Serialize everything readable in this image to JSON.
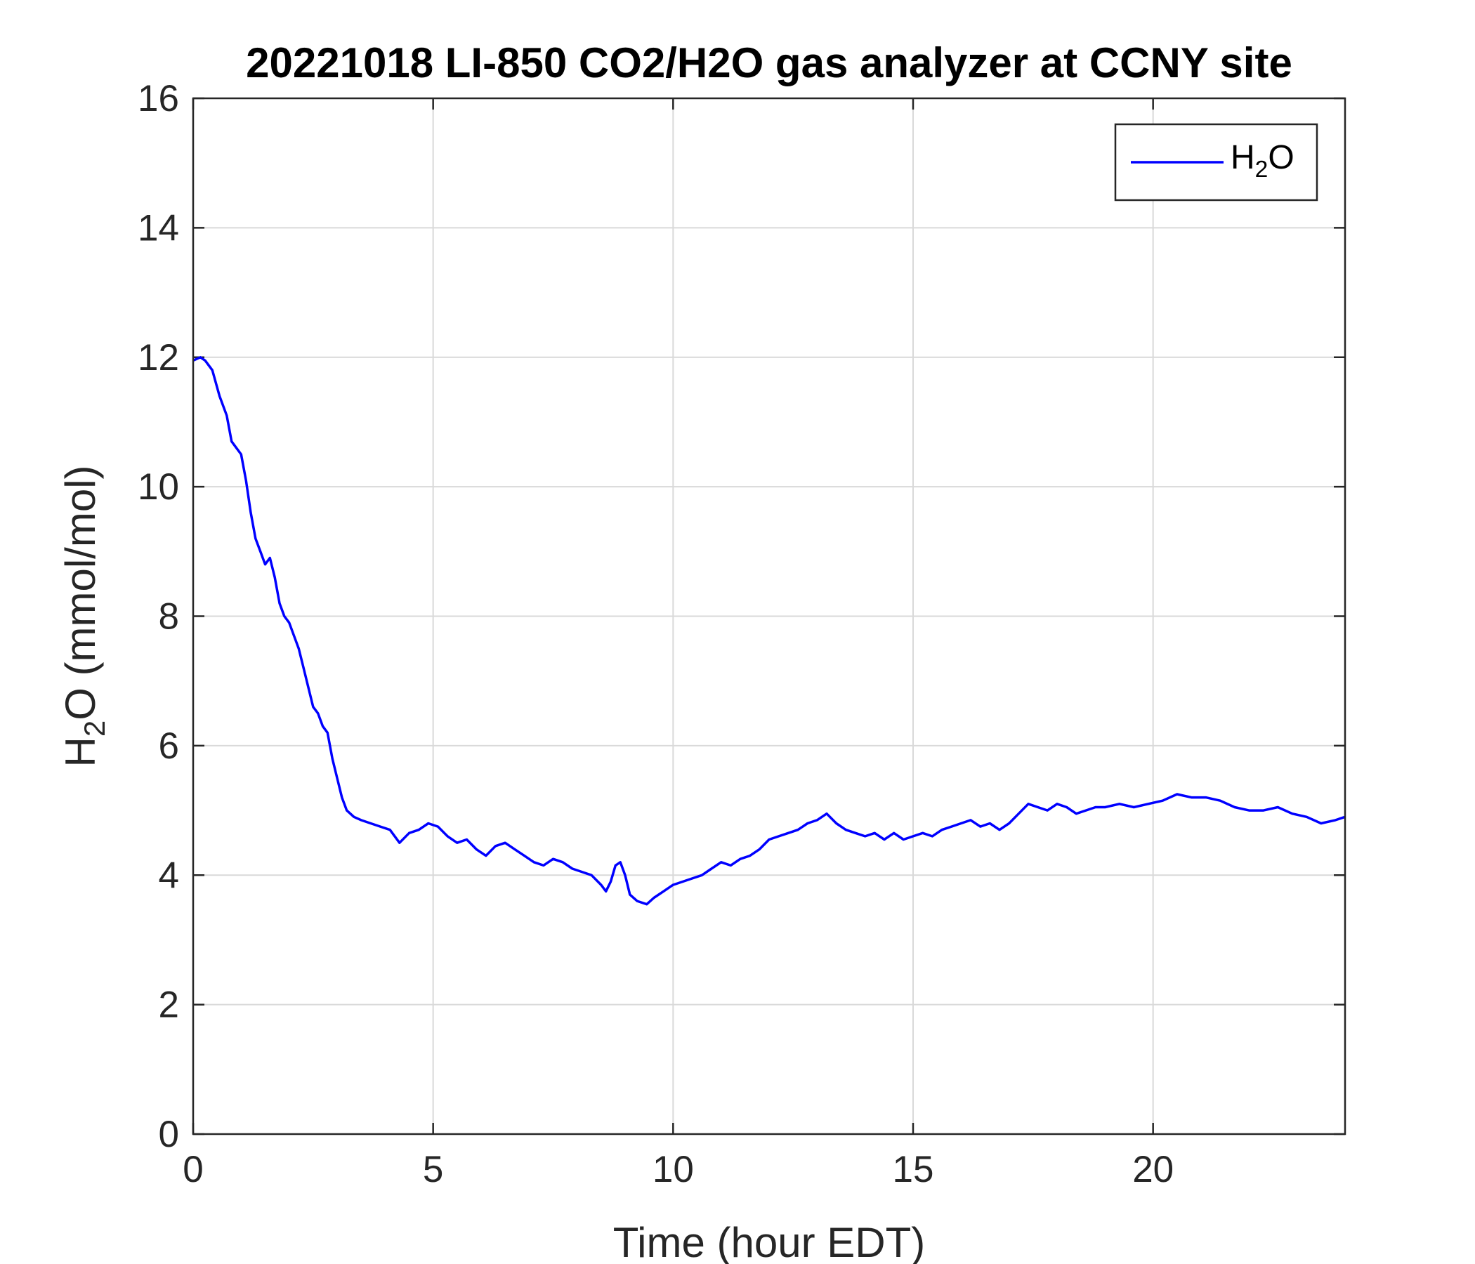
{
  "chart_data": {
    "type": "line",
    "title": "20221018 LI-850 CO2/H2O gas analyzer at CCNY site",
    "xlabel": "Time (hour EDT)",
    "ylabel": {
      "prefix": "H",
      "sub": "2",
      "suffix": "O (mmol/mol)"
    },
    "xlim": [
      0,
      24
    ],
    "ylim": [
      0,
      16
    ],
    "xticks": [
      0,
      5,
      10,
      15,
      20
    ],
    "yticks": [
      0,
      2,
      4,
      6,
      8,
      10,
      12,
      14,
      16
    ],
    "grid": true,
    "legend_position": "top-right",
    "series": [
      {
        "name": {
          "prefix": "H",
          "sub": "2",
          "suffix": "O"
        },
        "color": "#0000ff",
        "points": [
          [
            0.0,
            11.95
          ],
          [
            0.15,
            12.0
          ],
          [
            0.25,
            11.95
          ],
          [
            0.4,
            11.8
          ],
          [
            0.55,
            11.4
          ],
          [
            0.7,
            11.1
          ],
          [
            0.8,
            10.7
          ],
          [
            0.9,
            10.6
          ],
          [
            1.0,
            10.5
          ],
          [
            1.1,
            10.1
          ],
          [
            1.2,
            9.6
          ],
          [
            1.3,
            9.2
          ],
          [
            1.4,
            9.0
          ],
          [
            1.5,
            8.8
          ],
          [
            1.6,
            8.9
          ],
          [
            1.7,
            8.6
          ],
          [
            1.8,
            8.2
          ],
          [
            1.9,
            8.0
          ],
          [
            2.0,
            7.9
          ],
          [
            2.1,
            7.7
          ],
          [
            2.2,
            7.5
          ],
          [
            2.3,
            7.2
          ],
          [
            2.4,
            6.9
          ],
          [
            2.5,
            6.6
          ],
          [
            2.6,
            6.5
          ],
          [
            2.7,
            6.3
          ],
          [
            2.8,
            6.2
          ],
          [
            2.9,
            5.8
          ],
          [
            3.0,
            5.5
          ],
          [
            3.1,
            5.2
          ],
          [
            3.2,
            5.0
          ],
          [
            3.35,
            4.9
          ],
          [
            3.5,
            4.85
          ],
          [
            3.7,
            4.8
          ],
          [
            3.9,
            4.75
          ],
          [
            4.1,
            4.7
          ],
          [
            4.3,
            4.5
          ],
          [
            4.5,
            4.65
          ],
          [
            4.7,
            4.7
          ],
          [
            4.9,
            4.8
          ],
          [
            5.1,
            4.75
          ],
          [
            5.3,
            4.6
          ],
          [
            5.5,
            4.5
          ],
          [
            5.7,
            4.55
          ],
          [
            5.9,
            4.4
          ],
          [
            6.1,
            4.3
          ],
          [
            6.3,
            4.45
          ],
          [
            6.5,
            4.5
          ],
          [
            6.7,
            4.4
          ],
          [
            6.9,
            4.3
          ],
          [
            7.1,
            4.2
          ],
          [
            7.3,
            4.15
          ],
          [
            7.5,
            4.25
          ],
          [
            7.7,
            4.2
          ],
          [
            7.9,
            4.1
          ],
          [
            8.1,
            4.05
          ],
          [
            8.3,
            4.0
          ],
          [
            8.5,
            3.85
          ],
          [
            8.6,
            3.75
          ],
          [
            8.7,
            3.9
          ],
          [
            8.8,
            4.15
          ],
          [
            8.9,
            4.2
          ],
          [
            9.0,
            4.0
          ],
          [
            9.1,
            3.7
          ],
          [
            9.25,
            3.6
          ],
          [
            9.45,
            3.55
          ],
          [
            9.6,
            3.65
          ],
          [
            9.8,
            3.75
          ],
          [
            10.0,
            3.85
          ],
          [
            10.2,
            3.9
          ],
          [
            10.4,
            3.95
          ],
          [
            10.6,
            4.0
          ],
          [
            10.8,
            4.1
          ],
          [
            11.0,
            4.2
          ],
          [
            11.2,
            4.15
          ],
          [
            11.4,
            4.25
          ],
          [
            11.6,
            4.3
          ],
          [
            11.8,
            4.4
          ],
          [
            12.0,
            4.55
          ],
          [
            12.2,
            4.6
          ],
          [
            12.4,
            4.65
          ],
          [
            12.6,
            4.7
          ],
          [
            12.8,
            4.8
          ],
          [
            13.0,
            4.85
          ],
          [
            13.2,
            4.95
          ],
          [
            13.4,
            4.8
          ],
          [
            13.6,
            4.7
          ],
          [
            13.8,
            4.65
          ],
          [
            14.0,
            4.6
          ],
          [
            14.2,
            4.65
          ],
          [
            14.4,
            4.55
          ],
          [
            14.6,
            4.65
          ],
          [
            14.8,
            4.55
          ],
          [
            15.0,
            4.6
          ],
          [
            15.2,
            4.65
          ],
          [
            15.4,
            4.6
          ],
          [
            15.6,
            4.7
          ],
          [
            15.8,
            4.75
          ],
          [
            16.0,
            4.8
          ],
          [
            16.2,
            4.85
          ],
          [
            16.4,
            4.75
          ],
          [
            16.6,
            4.8
          ],
          [
            16.8,
            4.7
          ],
          [
            17.0,
            4.8
          ],
          [
            17.2,
            4.95
          ],
          [
            17.4,
            5.1
          ],
          [
            17.6,
            5.05
          ],
          [
            17.8,
            5.0
          ],
          [
            18.0,
            5.1
          ],
          [
            18.2,
            5.05
          ],
          [
            18.4,
            4.95
          ],
          [
            18.6,
            5.0
          ],
          [
            18.8,
            5.05
          ],
          [
            19.0,
            5.05
          ],
          [
            19.3,
            5.1
          ],
          [
            19.6,
            5.05
          ],
          [
            19.9,
            5.1
          ],
          [
            20.2,
            5.15
          ],
          [
            20.5,
            5.25
          ],
          [
            20.8,
            5.2
          ],
          [
            21.1,
            5.2
          ],
          [
            21.4,
            5.15
          ],
          [
            21.7,
            5.05
          ],
          [
            22.0,
            5.0
          ],
          [
            22.3,
            5.0
          ],
          [
            22.6,
            5.05
          ],
          [
            22.9,
            4.95
          ],
          [
            23.2,
            4.9
          ],
          [
            23.5,
            4.8
          ],
          [
            23.8,
            4.85
          ],
          [
            24.0,
            4.9
          ]
        ]
      }
    ]
  }
}
